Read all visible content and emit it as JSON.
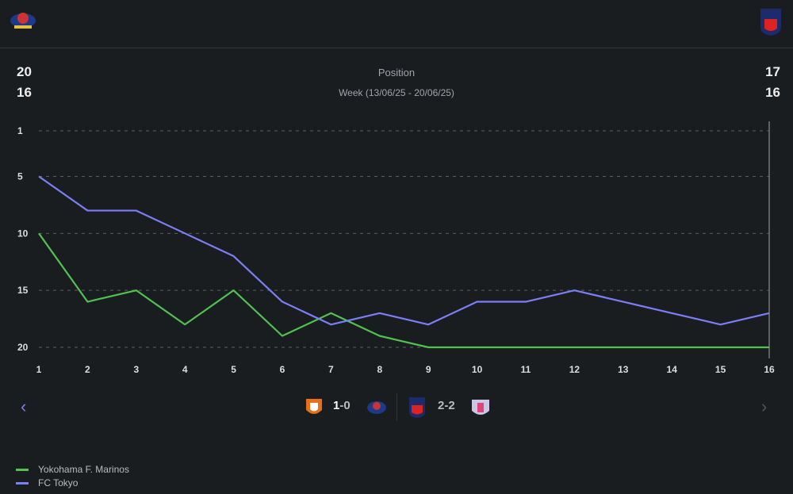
{
  "header": {
    "home_team": "Yokohama F. Marinos",
    "away_team": "FC Tokyo"
  },
  "summary": {
    "home_position": "20",
    "home_week": "16",
    "away_position": "17",
    "away_week": "16",
    "title": "Position",
    "week_label": "Week (13/06/25 - 20/06/25)"
  },
  "matches": [
    {
      "score_home": "1",
      "score_away": "0"
    },
    {
      "score_home": "2",
      "score_away": "2"
    }
  ],
  "chart_data": {
    "type": "line",
    "title": "Position",
    "x": [
      1,
      2,
      3,
      4,
      5,
      6,
      7,
      8,
      9,
      10,
      11,
      12,
      13,
      14,
      15,
      16
    ],
    "y_ticks": [
      1,
      5,
      10,
      15,
      20
    ],
    "ylim": [
      1,
      20
    ],
    "y_inverted": true,
    "grid": true,
    "legend_position": "bottom-left",
    "series": [
      {
        "name": "Yokohama F. Marinos",
        "color": "#4fc24f",
        "values": [
          10,
          16,
          15,
          18,
          15,
          19,
          17,
          19,
          20,
          20,
          20,
          20,
          20,
          20,
          20,
          20
        ]
      },
      {
        "name": "FC Tokyo",
        "color": "#7b7ff5",
        "values": [
          5,
          8,
          8,
          10,
          12,
          16,
          18,
          17,
          18,
          16,
          16,
          15,
          16,
          17,
          18,
          17
        ]
      }
    ]
  }
}
